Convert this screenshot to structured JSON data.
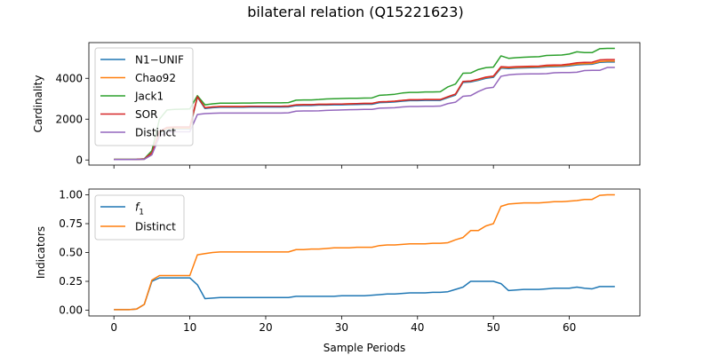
{
  "figure": {
    "title": "bilateral relation (Q15221623)"
  },
  "chart_data": [
    {
      "type": "line",
      "title": "",
      "xlabel": "",
      "ylabel": "Cardinality",
      "xlim": [
        -3.3,
        69.3
      ],
      "ylim": [
        -250,
        5750
      ],
      "xticks": [
        0,
        10,
        20,
        30,
        40,
        50,
        60
      ],
      "xtick_labels_visible": false,
      "yticks": [
        0,
        2000,
        4000
      ],
      "ytick_labels": [
        "0",
        "2000",
        "4000"
      ],
      "legend": "top-left",
      "grid": false,
      "x": [
        0,
        1,
        2,
        3,
        4,
        5,
        6,
        7,
        8,
        9,
        10,
        11,
        12,
        13,
        14,
        15,
        16,
        17,
        18,
        19,
        20,
        21,
        22,
        23,
        24,
        25,
        26,
        27,
        28,
        29,
        30,
        31,
        32,
        33,
        34,
        35,
        36,
        37,
        38,
        39,
        40,
        41,
        42,
        43,
        44,
        45,
        46,
        47,
        48,
        49,
        50,
        51,
        52,
        53,
        54,
        55,
        56,
        57,
        58,
        59,
        60,
        61,
        62,
        63,
        64,
        65,
        66
      ],
      "series": [
        {
          "name": "N1−UNIF",
          "color": "#1f77b4",
          "values": [
            20,
            20,
            20,
            25,
            40,
            300,
            1300,
            1500,
            1520,
            1520,
            1520,
            3080,
            2520,
            2560,
            2580,
            2580,
            2580,
            2580,
            2590,
            2590,
            2590,
            2590,
            2590,
            2600,
            2660,
            2670,
            2670,
            2690,
            2690,
            2700,
            2700,
            2710,
            2720,
            2730,
            2730,
            2810,
            2820,
            2840,
            2880,
            2910,
            2910,
            2920,
            2920,
            2920,
            3050,
            3180,
            3800,
            3820,
            3900,
            4000,
            4050,
            4500,
            4480,
            4500,
            4510,
            4520,
            4530,
            4560,
            4570,
            4580,
            4610,
            4660,
            4680,
            4690,
            4780,
            4800,
            4800
          ]
        },
        {
          "name": "Chao92",
          "color": "#ff7f0e",
          "values": [
            20,
            20,
            20,
            25,
            40,
            300,
            1350,
            1550,
            1560,
            1560,
            1560,
            3100,
            2560,
            2600,
            2620,
            2620,
            2620,
            2620,
            2630,
            2630,
            2630,
            2630,
            2630,
            2640,
            2700,
            2710,
            2710,
            2730,
            2730,
            2740,
            2740,
            2750,
            2760,
            2770,
            2770,
            2850,
            2860,
            2880,
            2920,
            2950,
            2950,
            2960,
            2960,
            2960,
            3090,
            3220,
            3840,
            3860,
            3940,
            4040,
            4090,
            4540,
            4520,
            4540,
            4550,
            4560,
            4570,
            4600,
            4610,
            4620,
            4650,
            4700,
            4720,
            4730,
            4820,
            4840,
            4840
          ]
        },
        {
          "name": "Jack1",
          "color": "#2ca02c",
          "values": [
            30,
            30,
            30,
            35,
            60,
            450,
            2000,
            2450,
            2480,
            2490,
            2500,
            3150,
            2700,
            2750,
            2780,
            2780,
            2780,
            2790,
            2790,
            2800,
            2800,
            2800,
            2800,
            2810,
            2930,
            2940,
            2940,
            2960,
            2990,
            3000,
            3010,
            3020,
            3020,
            3030,
            3040,
            3170,
            3190,
            3220,
            3280,
            3310,
            3310,
            3330,
            3330,
            3340,
            3580,
            3720,
            4250,
            4260,
            4430,
            4520,
            4550,
            5100,
            4980,
            5010,
            5030,
            5050,
            5060,
            5120,
            5130,
            5140,
            5190,
            5300,
            5260,
            5260,
            5450,
            5470,
            5470
          ]
        },
        {
          "name": "SOR",
          "color": "#d62728",
          "values": [
            25,
            25,
            25,
            30,
            50,
            350,
            1400,
            1600,
            1620,
            1620,
            1620,
            3100,
            2560,
            2600,
            2620,
            2620,
            2620,
            2620,
            2630,
            2630,
            2630,
            2630,
            2630,
            2640,
            2700,
            2710,
            2710,
            2730,
            2730,
            2740,
            2740,
            2750,
            2760,
            2770,
            2770,
            2850,
            2860,
            2880,
            2920,
            2950,
            2950,
            2960,
            2960,
            2960,
            3100,
            3230,
            3850,
            3870,
            3960,
            4060,
            4110,
            4570,
            4550,
            4570,
            4580,
            4590,
            4600,
            4640,
            4650,
            4660,
            4700,
            4760,
            4780,
            4790,
            4900,
            4920,
            4920
          ]
        },
        {
          "name": "Distinct",
          "color": "#9467bd",
          "values": [
            20,
            20,
            20,
            25,
            35,
            250,
            1150,
            1350,
            1380,
            1380,
            1380,
            2230,
            2270,
            2290,
            2300,
            2300,
            2300,
            2300,
            2300,
            2300,
            2300,
            2300,
            2300,
            2310,
            2390,
            2400,
            2400,
            2410,
            2430,
            2440,
            2450,
            2460,
            2470,
            2480,
            2480,
            2540,
            2550,
            2560,
            2600,
            2620,
            2620,
            2630,
            2630,
            2640,
            2760,
            2830,
            3120,
            3150,
            3350,
            3510,
            3560,
            4100,
            4170,
            4200,
            4210,
            4220,
            4220,
            4230,
            4270,
            4280,
            4280,
            4300,
            4380,
            4390,
            4390,
            4530,
            4530
          ]
        }
      ]
    },
    {
      "type": "line",
      "title": "",
      "xlabel": "Sample Periods",
      "ylabel": "Indicators",
      "xlim": [
        -3.3,
        69.3
      ],
      "ylim": [
        -0.05,
        1.05
      ],
      "xticks": [
        0,
        10,
        20,
        30,
        40,
        50,
        60
      ],
      "xtick_labels": [
        "0",
        "10",
        "20",
        "30",
        "40",
        "50",
        "60"
      ],
      "yticks": [
        0,
        0.25,
        0.5,
        0.75,
        1
      ],
      "ytick_labels": [
        "0.00",
        "0.25",
        "0.50",
        "0.75",
        "1.00"
      ],
      "legend": "top-left",
      "grid": false,
      "x": [
        0,
        1,
        2,
        3,
        4,
        5,
        6,
        7,
        8,
        9,
        10,
        11,
        12,
        13,
        14,
        15,
        16,
        17,
        18,
        19,
        20,
        21,
        22,
        23,
        24,
        25,
        26,
        27,
        28,
        29,
        30,
        31,
        32,
        33,
        34,
        35,
        36,
        37,
        38,
        39,
        40,
        41,
        42,
        43,
        44,
        45,
        46,
        47,
        48,
        49,
        50,
        51,
        52,
        53,
        54,
        55,
        56,
        57,
        58,
        59,
        60,
        61,
        62,
        63,
        64,
        65,
        66
      ],
      "series": [
        {
          "name": "f",
          "name_subscript": "1",
          "color": "#1f77b4",
          "values": [
            0.005,
            0.005,
            0.005,
            0.01,
            0.05,
            0.25,
            0.28,
            0.28,
            0.28,
            0.28,
            0.28,
            0.22,
            0.1,
            0.105,
            0.11,
            0.11,
            0.11,
            0.11,
            0.11,
            0.11,
            0.11,
            0.11,
            0.11,
            0.11,
            0.12,
            0.12,
            0.12,
            0.12,
            0.12,
            0.12,
            0.125,
            0.125,
            0.125,
            0.125,
            0.13,
            0.135,
            0.14,
            0.14,
            0.145,
            0.15,
            0.15,
            0.15,
            0.155,
            0.155,
            0.16,
            0.18,
            0.2,
            0.25,
            0.25,
            0.25,
            0.25,
            0.23,
            0.17,
            0.175,
            0.18,
            0.18,
            0.18,
            0.185,
            0.19,
            0.19,
            0.19,
            0.2,
            0.19,
            0.185,
            0.205,
            0.205,
            0.205
          ]
        },
        {
          "name": "Distinct",
          "color": "#ff7f0e",
          "values": [
            0.005,
            0.005,
            0.005,
            0.01,
            0.05,
            0.26,
            0.3,
            0.3,
            0.3,
            0.3,
            0.3,
            0.48,
            0.49,
            0.5,
            0.505,
            0.505,
            0.505,
            0.505,
            0.505,
            0.505,
            0.505,
            0.505,
            0.505,
            0.505,
            0.525,
            0.525,
            0.53,
            0.53,
            0.535,
            0.54,
            0.54,
            0.54,
            0.545,
            0.545,
            0.545,
            0.56,
            0.565,
            0.565,
            0.57,
            0.575,
            0.575,
            0.575,
            0.58,
            0.58,
            0.585,
            0.61,
            0.63,
            0.69,
            0.69,
            0.73,
            0.75,
            0.9,
            0.92,
            0.925,
            0.93,
            0.93,
            0.93,
            0.935,
            0.94,
            0.94,
            0.945,
            0.95,
            0.96,
            0.96,
            0.995,
            1.0,
            1.0
          ]
        }
      ]
    }
  ]
}
